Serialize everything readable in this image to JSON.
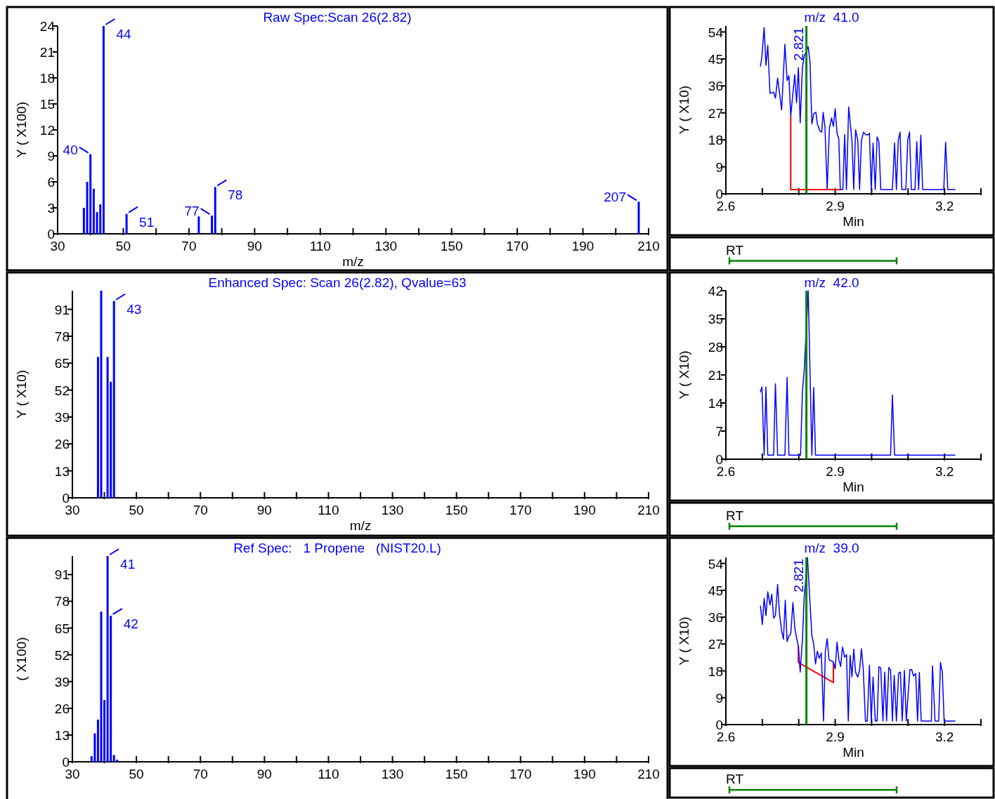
{
  "chart_data": [
    {
      "type": "bar",
      "title": "Raw Spec:Scan 26(2.82)",
      "xlabel": "m/z",
      "ylabel": "Y ( X100)",
      "color": "#0000ff",
      "x": [
        38,
        39,
        40,
        41,
        42,
        43,
        44,
        51,
        73,
        77,
        78,
        207
      ],
      "values": [
        3.0,
        6.0,
        9.2,
        5.2,
        2.5,
        3.4,
        24,
        2.3,
        2.0,
        2.1,
        5.4,
        3.7
      ],
      "xlim": [
        30,
        210
      ],
      "xticks": [
        30,
        {
          "value": 40,
          "label": null
        },
        50,
        {
          "value": 60,
          "label": null
        },
        70,
        {
          "value": 80,
          "label": null
        },
        90,
        {
          "value": 100,
          "label": null
        },
        110,
        {
          "value": 120,
          "label": null
        },
        130,
        {
          "value": 140,
          "label": null
        },
        150,
        {
          "value": 160,
          "label": null
        },
        170,
        {
          "value": 180,
          "label": null
        },
        190,
        {
          "value": 200,
          "label": null
        },
        210
      ],
      "ylim": [
        0,
        24
      ],
      "yticks": [
        0,
        3,
        6,
        9,
        12,
        15,
        18,
        21,
        24
      ],
      "annotations": [
        {
          "text": "40",
          "x": 40,
          "y": 9.2
        },
        {
          "text": "44",
          "x": 44,
          "y": 24
        },
        {
          "text": "51",
          "x": 51,
          "y": 2.3
        },
        {
          "text": "77",
          "x": 77,
          "y": 2.1
        },
        {
          "text": "78",
          "x": 78,
          "y": 5.4
        },
        {
          "text": "207",
          "x": 207,
          "y": 3.7
        }
      ]
    },
    {
      "type": "line",
      "title": "m/z  41.0",
      "xlabel": "Min",
      "ylabel": "Y ( X10)",
      "xlim": [
        2.6,
        3.3
      ],
      "xticks": [
        2.6,
        {
          "value": 2.7,
          "label": null
        },
        {
          "value": 2.8,
          "label": null
        },
        2.9,
        {
          "value": 3.0,
          "label": null
        },
        {
          "value": 3.1,
          "label": null
        },
        3.2,
        {
          "value": 3.3,
          "label": null
        }
      ],
      "ylim": [
        0,
        56
      ],
      "yticks": [
        0,
        9,
        18,
        27,
        36,
        45,
        54
      ],
      "series": [
        {
          "color": "#0000ff",
          "x": [
            2.695,
            2.699,
            2.705,
            2.71,
            2.715,
            2.721,
            2.731,
            2.736,
            2.742,
            2.753,
            2.762,
            2.768,
            2.773,
            2.778,
            2.789,
            2.794,
            2.799,
            2.804,
            2.81,
            2.815,
            2.826,
            2.831,
            2.836,
            2.841,
            2.847,
            2.851,
            2.858,
            2.863,
            2.867,
            2.872,
            2.878,
            2.884,
            2.89,
            2.895,
            2.9,
            2.905,
            2.91,
            2.914,
            2.921,
            2.926,
            2.931,
            2.937,
            2.946,
            2.951,
            2.956,
            2.962,
            2.967,
            2.972,
            2.978,
            2.983,
            2.989,
            2.994,
            2.999,
            3.004,
            3.01,
            3.015,
            3.02,
            3.025,
            3.057,
            3.063,
            3.068,
            3.073,
            3.078,
            3.083,
            3.094,
            3.099,
            3.104,
            3.109,
            3.119,
            3.124,
            3.129,
            3.135,
            3.14,
            3.198,
            3.203,
            3.209,
            3.229
          ],
          "values": [
            42.6,
            46,
            55.5,
            42.9,
            49.5,
            33.5,
            33.9,
            31.9,
            38.6,
            28,
            49.9,
            37.8,
            39.4,
            26,
            39.7,
            30.4,
            42.1,
            23.7,
            42.1,
            46,
            49.1,
            43.7,
            23.3,
            26.8,
            27.2,
            23.3,
            21,
            20.6,
            27.2,
            22.1,
            1.4,
            21.8,
            25.3,
            22.5,
            28.4,
            20.2,
            18.2,
            1.4,
            1.4,
            19.8,
            1.4,
            29,
            17.8,
            1.4,
            21.4,
            17.8,
            1.4,
            17.8,
            20.6,
            19.8,
            19.6,
            20.2,
            1.4,
            16.9,
            1.4,
            19,
            17.4,
            1.4,
            1.4,
            16.9,
            1.4,
            17.8,
            20.6,
            1.4,
            1.4,
            17.8,
            20.6,
            1.4,
            1.4,
            17.4,
            1.4,
            19.6,
            1.4,
            1.4,
            17.2,
            1.4,
            1.4
          ]
        },
        {
          "color": "#ff0000",
          "x": [
            2.778,
            2.778,
            2.915
          ],
          "values": [
            26,
            1.4,
            1.4
          ]
        }
      ],
      "ref_lines": [
        {
          "axis": "x",
          "value": 2.821,
          "label": "2.821",
          "color": "#008000"
        }
      ]
    },
    {
      "type": "other",
      "annotations": [
        "RT"
      ]
    },
    {
      "type": "bar",
      "title": "Enhanced Spec: Scan 26(2.82), Qvalue=63",
      "xlabel": "m/z",
      "ylabel": "Y ( X10)",
      "color": "#0000ff",
      "x": [
        38,
        39,
        41,
        42,
        43
      ],
      "values": [
        68,
        100,
        68,
        56,
        95
      ],
      "xlim": [
        30,
        210
      ],
      "xticks": [
        30,
        {
          "value": 40,
          "label": null
        },
        50,
        {
          "value": 60,
          "label": null
        },
        70,
        {
          "value": 80,
          "label": null
        },
        90,
        {
          "value": 100,
          "label": null
        },
        110,
        {
          "value": 120,
          "label": null
        },
        130,
        {
          "value": 140,
          "label": null
        },
        150,
        {
          "value": 160,
          "label": null
        },
        170,
        {
          "value": 180,
          "label": null
        },
        190,
        {
          "value": 200,
          "label": null
        },
        210
      ],
      "ylim": [
        0,
        100
      ],
      "yticks": [
        0,
        13,
        26,
        39,
        52,
        65,
        78,
        91
      ],
      "annotations": [
        {
          "text": "43",
          "x": 43,
          "y": 95
        }
      ]
    },
    {
      "type": "line",
      "title": "m/z  42.0",
      "xlabel": "Min",
      "ylabel": "Y ( X10)",
      "xlim": [
        2.6,
        3.3
      ],
      "xticks": [
        2.6,
        {
          "value": 2.7,
          "label": null
        },
        {
          "value": 2.8,
          "label": null
        },
        2.9,
        {
          "value": 3.0,
          "label": null
        },
        {
          "value": 3.1,
          "label": null
        },
        3.2,
        {
          "value": 3.3,
          "label": null
        }
      ],
      "ylim": [
        0,
        42
      ],
      "yticks": [
        0,
        7,
        14,
        21,
        28,
        35,
        42
      ],
      "series": [
        {
          "color": "#0000ff",
          "x": [
            2.695,
            2.699,
            2.705,
            2.71,
            2.715,
            2.731,
            2.736,
            2.742,
            2.762,
            2.768,
            2.773,
            2.805,
            2.81,
            2.815,
            2.826,
            2.836,
            2.841,
            2.846,
            3.052,
            3.057,
            3.063,
            3.229
          ],
          "values": [
            16.8,
            18,
            1,
            18,
            1,
            1,
            18.8,
            1,
            1,
            20.4,
            1,
            1,
            16.8,
            22.1,
            42,
            1,
            17.9,
            1,
            1,
            16,
            1,
            1
          ]
        }
      ],
      "ref_lines": [
        {
          "axis": "x",
          "value": 2.821,
          "color": "#008000"
        }
      ]
    },
    {
      "type": "other",
      "annotations": [
        "RT"
      ]
    },
    {
      "type": "bar",
      "title": "Ref Spec:   1 Propene   (NIST20.L)",
      "ylabel": "( X100)",
      "color": "#0000ff",
      "x": [
        36,
        37,
        38,
        39,
        40,
        41,
        42,
        43,
        44
      ],
      "values": [
        2.7,
        13.8,
        20.5,
        73,
        30,
        100,
        71,
        3.3,
        1
      ],
      "xlim": [
        30,
        210
      ],
      "xticks": [
        30,
        {
          "value": 40,
          "label": null
        },
        50,
        {
          "value": 60,
          "label": null
        },
        70,
        {
          "value": 80,
          "label": null
        },
        90,
        {
          "value": 100,
          "label": null
        },
        110,
        {
          "value": 120,
          "label": null
        },
        130,
        {
          "value": 140,
          "label": null
        },
        150,
        {
          "value": 160,
          "label": null
        },
        170,
        {
          "value": 180,
          "label": null
        },
        190,
        {
          "value": 200,
          "label": null
        },
        210
      ],
      "ylim": [
        0,
        100
      ],
      "yticks": [
        0,
        13,
        26,
        39,
        52,
        65,
        78,
        91
      ],
      "annotations": [
        {
          "text": "41",
          "x": 41,
          "y": 100
        },
        {
          "text": "42",
          "x": 42,
          "y": 71
        }
      ]
    },
    {
      "type": "line",
      "title": "m/z  39.0",
      "xlabel": "Min",
      "ylabel": "Y ( X10)",
      "xlim": [
        2.6,
        3.3
      ],
      "xticks": [
        2.6,
        {
          "value": 2.7,
          "label": null
        },
        {
          "value": 2.8,
          "label": null
        },
        2.9,
        {
          "value": 3.0,
          "label": null
        },
        {
          "value": 3.1,
          "label": null
        },
        3.2,
        {
          "value": 3.3,
          "label": null
        }
      ],
      "ylim": [
        0,
        56
      ],
      "yticks": [
        0,
        9,
        18,
        27,
        36,
        45,
        54
      ],
      "series": [
        {
          "color": "#0000ff",
          "x": [
            2.695,
            2.7,
            2.705,
            2.71,
            2.715,
            2.721,
            2.726,
            2.731,
            2.736,
            2.742,
            2.747,
            2.753,
            2.758,
            2.763,
            2.768,
            2.773,
            2.778,
            2.784,
            2.789,
            2.794,
            2.799,
            2.804,
            2.81,
            2.815,
            2.824,
            2.831,
            2.836,
            2.841,
            2.846,
            2.851,
            2.856,
            2.862,
            2.868,
            2.873,
            2.878,
            2.883,
            2.888,
            2.895,
            2.9,
            2.905,
            2.91,
            2.915,
            2.92,
            2.926,
            2.931,
            2.936,
            2.941,
            2.946,
            2.951,
            2.956,
            2.962,
            2.967,
            2.972,
            2.977,
            2.983,
            2.988,
            2.994,
            2.999,
            3.004,
            3.01,
            3.015,
            3.02,
            3.025,
            3.031,
            3.036,
            3.041,
            3.047,
            3.052,
            3.057,
            3.062,
            3.068,
            3.074,
            3.079,
            3.084,
            3.09,
            3.095,
            3.105,
            3.11,
            3.115,
            3.121,
            3.126,
            3.131,
            3.136,
            3.164,
            3.167,
            3.174,
            3.184,
            3.189,
            3.194,
            3.199,
            3.229
          ],
          "values": [
            39.7,
            33.5,
            42.3,
            36.5,
            44.5,
            40.1,
            43.7,
            35.7,
            36.5,
            47,
            37.3,
            31.4,
            28.6,
            41.7,
            27.8,
            29.8,
            30.3,
            40.9,
            32.6,
            29,
            26.2,
            17.6,
            28.2,
            42.7,
            56,
            40.5,
            29.8,
            27,
            20.3,
            24.6,
            22.2,
            24,
            1.2,
            24.6,
            28.8,
            21.8,
            21.4,
            21,
            18.7,
            27.6,
            21.8,
            19.5,
            26,
            22.6,
            23.4,
            1.2,
            23.2,
            16,
            25.3,
            17.5,
            15.9,
            18.3,
            25.4,
            18.7,
            1.2,
            1.2,
            19.9,
            1.2,
            15.9,
            1.2,
            1.2,
            19.4,
            19.1,
            1.2,
            17.6,
            1.2,
            19.1,
            18.3,
            1.2,
            16.5,
            1.2,
            17.2,
            17.6,
            1.2,
            18.1,
            1.2,
            18.4,
            18.4,
            16.3,
            17.1,
            1.2,
            17.5,
            1.2,
            1.2,
            19.7,
            1.2,
            1.2,
            20.8,
            17.5,
            1.2,
            1.2
          ]
        },
        {
          "color": "#ff0000",
          "x": [
            2.799,
            2.799,
            2.895,
            2.895
          ],
          "values": [
            26.2,
            20.8,
            14.1,
            20.6
          ]
        }
      ],
      "ref_lines": [
        {
          "axis": "x",
          "value": 2.821,
          "label": "2.821",
          "color": "#008000"
        }
      ]
    },
    {
      "type": "other",
      "annotations": [
        "RT"
      ]
    }
  ]
}
